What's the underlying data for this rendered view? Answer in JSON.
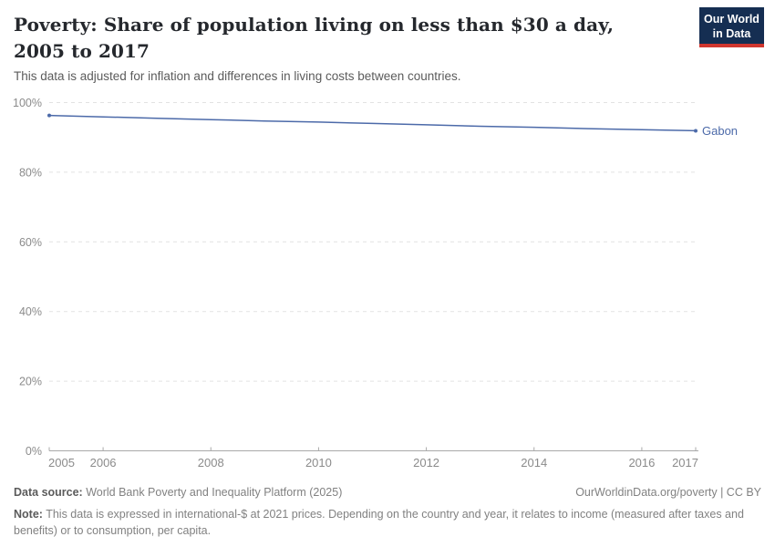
{
  "header": {
    "title": "Poverty: Share of population living on less than $30 a day, 2005 to 2017",
    "subtitle": "This data is adjusted for inflation and differences in living costs between countries.",
    "logo": {
      "line1": "Our World",
      "line2": "in Data",
      "background": "#152e52",
      "accent_bar": "#d0362e"
    }
  },
  "chart_data": {
    "type": "line",
    "title": "Poverty: Share of population living on less than $30 a day, 2005 to 2017",
    "x": [
      2005,
      2006,
      2007,
      2008,
      2009,
      2010,
      2011,
      2012,
      2013,
      2014,
      2015,
      2016,
      2017
    ],
    "series": [
      {
        "name": "Gabon",
        "color": "#4c6aa9",
        "values": [
          96.3,
          95.9,
          95.5,
          95.1,
          94.7,
          94.4,
          94.0,
          93.6,
          93.2,
          92.9,
          92.5,
          92.2,
          91.9
        ]
      }
    ],
    "xlim": [
      2005,
      2017
    ],
    "ylim": [
      0,
      100
    ],
    "x_ticks": [
      2005,
      2006,
      2008,
      2010,
      2012,
      2014,
      2016,
      2017
    ],
    "y_ticks": [
      0,
      20,
      40,
      60,
      80,
      100
    ],
    "y_tick_suffix": "%",
    "grid": "horizontal-dashed",
    "legend": "end-of-line-label",
    "colors": {
      "gridline": "#e2e2e2",
      "axis": "#a9a9a9",
      "tick_label": "#8b8b8b"
    }
  },
  "footer": {
    "datasource_label": "Data source:",
    "datasource_value": " World Bank Poverty and Inequality Platform (2025)",
    "rights": "OurWorldinData.org/poverty | CC BY",
    "note_label": "Note:",
    "note_value": " This data is expressed in international-$ at 2021 prices. Depending on the country and year, it relates to income (measured after taxes and benefits) or to consumption, per capita."
  }
}
